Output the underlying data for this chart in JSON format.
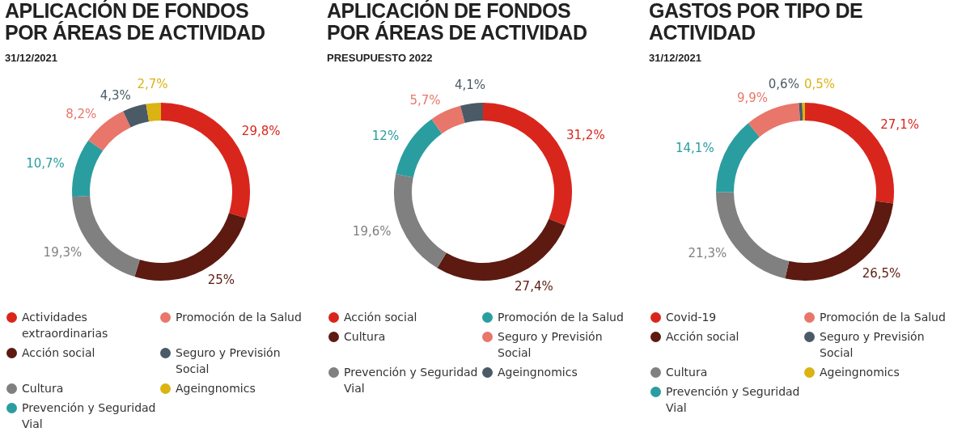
{
  "chart_data": [
    {
      "type": "donut",
      "title": "APLICACIÓN DE FONDOS\nPOR ÁREAS DE ACTIVIDAD",
      "subtitle": "31/12/2021",
      "categories": [
        "Actividades extraordinarias",
        "Acción social",
        "Cultura",
        "Prevención y Seguridad Vial",
        "Promoción de la Salud",
        "Seguro y Previsión Social",
        "Ageingnomics"
      ],
      "values": [
        29.8,
        25,
        19.3,
        10.7,
        8.2,
        4.3,
        2.7
      ],
      "value_labels": [
        "29,8%",
        "25%",
        "19,3%",
        "10,7%",
        "8,2%",
        "4,3%",
        "2,7%"
      ],
      "colors": [
        "#d9261c",
        "#5c1a10",
        "#808080",
        "#2a9da0",
        "#e8766a",
        "#4a5a66",
        "#dbb312"
      ],
      "legend": "bottom"
    },
    {
      "type": "donut",
      "title": "APLICACIÓN DE FONDOS\nPOR ÁREAS DE ACTIVIDAD",
      "subtitle": "PRESUPUESTO 2022",
      "categories": [
        "Acción social",
        "Cultura",
        "Prevención y Seguridad Vial",
        "Promoción de la Salud",
        "Seguro y Previsión Social",
        "Ageingnomics"
      ],
      "values": [
        31.2,
        27.4,
        19.6,
        12,
        5.7,
        4.1
      ],
      "value_labels": [
        "31,2%",
        "27,4%",
        "19,6%",
        "12%",
        "5,7%",
        "4,1%"
      ],
      "colors": [
        "#d9261c",
        "#5c1a10",
        "#808080",
        "#2a9da0",
        "#e8766a",
        "#4a5a66"
      ],
      "legend": "bottom"
    },
    {
      "type": "donut",
      "title": "GASTOS POR TIPO DE ACTIVIDAD",
      "subtitle": "31/12/2021",
      "categories": [
        "Covid-19",
        "Acción social",
        "Cultura",
        "Prevención y Seguridad Vial",
        "Promoción de la Salud",
        "Seguro y Previsión Social",
        "Ageingnomics"
      ],
      "values": [
        27.1,
        26.5,
        21.3,
        14.1,
        9.9,
        0.6,
        0.5
      ],
      "value_labels": [
        "27,1%",
        "26,5%",
        "21,3%",
        "14,1%",
        "9,9%",
        "0,6%",
        "0,5%"
      ],
      "colors": [
        "#d9261c",
        "#5c1a10",
        "#808080",
        "#2a9da0",
        "#e8766a",
        "#4a5a66",
        "#dbb312"
      ],
      "legend": "bottom"
    }
  ]
}
